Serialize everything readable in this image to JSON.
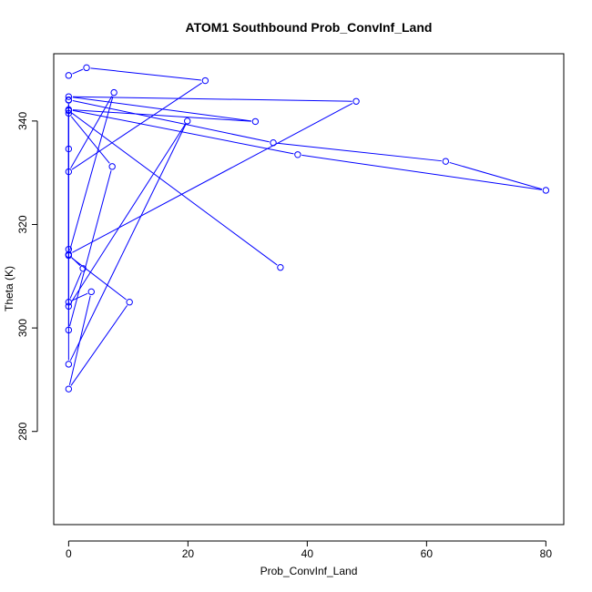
{
  "chart_data": {
    "type": "line",
    "title": "ATOM1 Southbound Prob_ConvInf_Land",
    "xlabel": "Prob_ConvInf_Land",
    "ylabel": "Theta (K)",
    "xlim": [
      -2.5,
      83
    ],
    "ylim": [
      262,
      353
    ],
    "x_ticks": [
      0,
      20,
      40,
      60,
      80
    ],
    "y_ticks": [
      280,
      300,
      320,
      340
    ],
    "grid": false,
    "legend": "none",
    "colors": {
      "series": "#0000ff"
    },
    "series": [
      {
        "points": [
          {
            "x": 0,
            "y": 348.8
          },
          {
            "x": 3,
            "y": 350.3
          },
          {
            "x": 22.9,
            "y": 347.8
          },
          {
            "x": 0,
            "y": 330.2
          },
          {
            "x": 7.6,
            "y": 345.5
          },
          {
            "x": 0,
            "y": 314.2
          },
          {
            "x": 48.2,
            "y": 343.8
          },
          {
            "x": 0,
            "y": 344.7
          },
          {
            "x": 31.3,
            "y": 339.9
          },
          {
            "x": 0,
            "y": 342.2
          },
          {
            "x": 38.4,
            "y": 333.5
          },
          {
            "x": 80,
            "y": 326.6
          },
          {
            "x": 63.2,
            "y": 332.2
          },
          {
            "x": 34.3,
            "y": 335.8
          },
          {
            "x": 0,
            "y": 344.1
          },
          {
            "x": 0,
            "y": 314.2
          },
          {
            "x": 2.4,
            "y": 311.5
          },
          {
            "x": 0,
            "y": 305.0
          },
          {
            "x": 3.8,
            "y": 307.0
          },
          {
            "x": 0,
            "y": 288.2
          },
          {
            "x": 10.2,
            "y": 305.0
          },
          {
            "x": 0,
            "y": 314.0
          },
          {
            "x": 0,
            "y": 334.6
          },
          {
            "x": 0,
            "y": 341.5
          },
          {
            "x": 7.3,
            "y": 331.2
          },
          {
            "x": 0,
            "y": 299.6
          },
          {
            "x": 0,
            "y": 315.2
          },
          {
            "x": 0,
            "y": 344.0
          },
          {
            "x": 0,
            "y": 293.0
          },
          {
            "x": 19.9,
            "y": 340.0
          },
          {
            "x": 0,
            "y": 304.2
          },
          {
            "x": 0,
            "y": 342.0
          },
          {
            "x": 35.5,
            "y": 311.7
          }
        ]
      }
    ]
  }
}
